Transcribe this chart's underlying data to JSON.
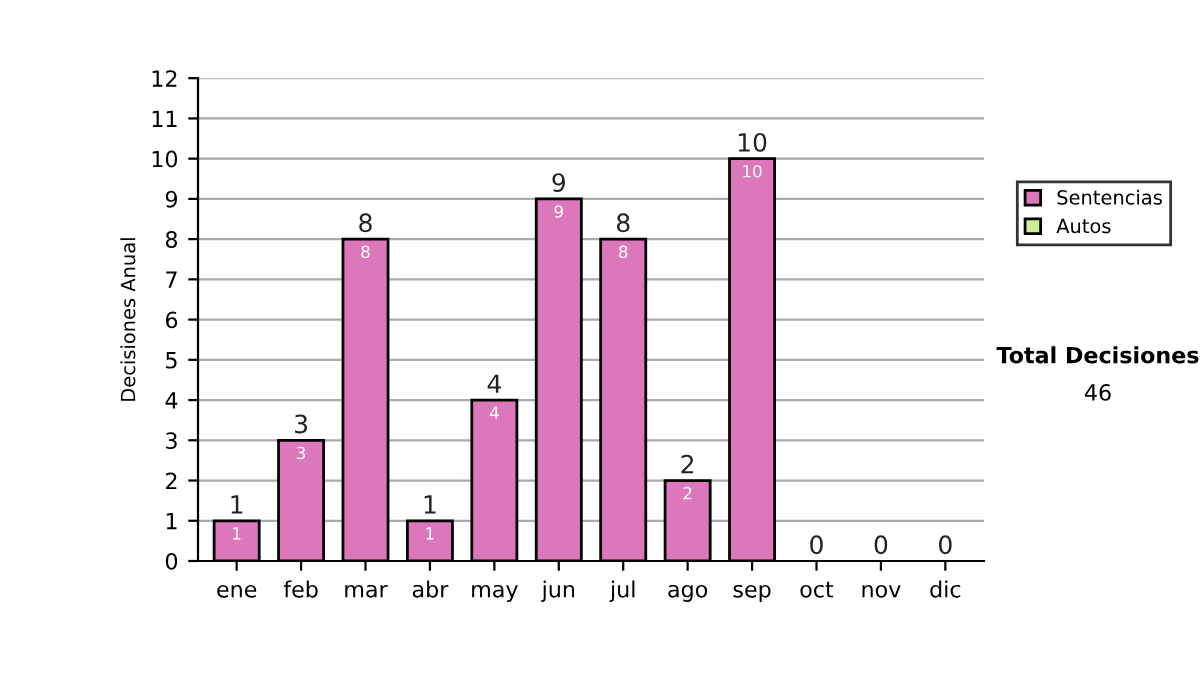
{
  "chart_data": {
    "type": "bar",
    "stacked": true,
    "ylabel": "Decisiones Anual",
    "categories": [
      "ene",
      "feb",
      "mar",
      "abr",
      "may",
      "jun",
      "jul",
      "ago",
      "sep",
      "oct",
      "nov",
      "dic"
    ],
    "series": [
      {
        "name": "Sentencias",
        "color": "#dd77bb",
        "values": [
          1,
          3,
          8,
          1,
          4,
          9,
          8,
          2,
          10,
          0,
          0,
          0
        ],
        "value_labels": [
          "1",
          "3",
          "8",
          "1",
          "4",
          "9",
          "8",
          "2",
          "10",
          null,
          null,
          null
        ]
      },
      {
        "name": "Autos",
        "color": "#ccee99",
        "values": [
          0,
          0,
          0,
          0,
          0,
          0,
          0,
          0,
          0,
          0,
          0,
          0
        ]
      }
    ],
    "totals": [
      "1",
      "3",
      "8",
      "1",
      "4",
      "9",
      "8",
      "2",
      "10",
      "0",
      "0",
      "0"
    ],
    "ylim": [
      0,
      12
    ],
    "yticks": [
      0,
      1,
      2,
      3,
      4,
      5,
      6,
      7,
      8,
      9,
      10,
      11,
      12
    ],
    "grid": "y",
    "legend": "right",
    "annotations": [
      "Total Decisiones",
      "46"
    ]
  }
}
